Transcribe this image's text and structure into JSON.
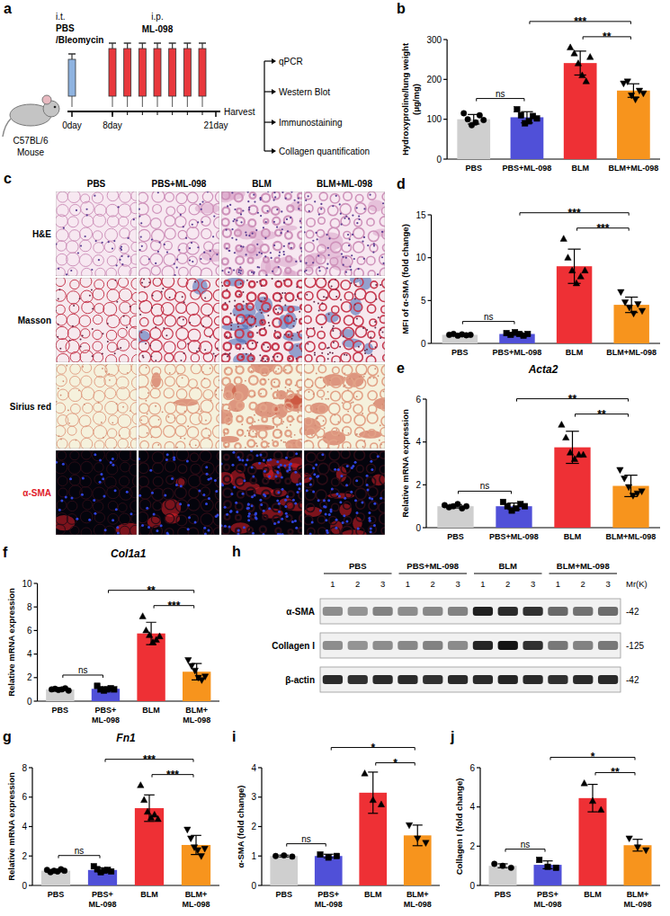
{
  "schematic": {
    "panel_label": "a",
    "strain": "C57BL/6",
    "animal": "Mouse",
    "first_route": "i.t.",
    "first_agent": [
      "PBS",
      "/Bleomycin"
    ],
    "second_route": "i.p.",
    "second_agent": "ML-098",
    "days": [
      "0day",
      "8day",
      "21day"
    ],
    "harvest": "Harvest",
    "outputs": [
      "qPCR",
      "Western Blot",
      "Immunostaining",
      "Collagen quantification"
    ]
  },
  "histology": {
    "panel_label": "c",
    "columns": [
      "PBS",
      "PBS+ML-098",
      "BLM",
      "BLM+ML-098"
    ],
    "rows": [
      "H&E",
      "Masson",
      "Sirius red",
      "α-SMA"
    ]
  },
  "blot": {
    "panel_label": "h",
    "groups": [
      "PBS",
      "PBS+ML-098",
      "BLM",
      "BLM+ML-098"
    ],
    "lanes": [
      1,
      2,
      3
    ],
    "mw_header": "Mr(K)",
    "bands": [
      {
        "name": "α-SMA",
        "mw": "-42",
        "intensity": [
          0.45,
          0.42,
          0.5,
          0.45,
          0.48,
          0.5,
          0.95,
          0.9,
          0.88,
          0.62,
          0.58,
          0.6
        ]
      },
      {
        "name": "Collagen I",
        "mw": "-125",
        "intensity": [
          0.45,
          0.42,
          0.45,
          0.48,
          0.5,
          0.46,
          0.92,
          1,
          0.88,
          0.55,
          0.5,
          0.55
        ]
      },
      {
        "name": "β-actin",
        "mw": "-42",
        "intensity": [
          0.9,
          0.88,
          0.9,
          0.9,
          0.87,
          0.9,
          0.9,
          0.92,
          0.9,
          0.88,
          0.9,
          0.9
        ]
      }
    ]
  },
  "chart_data": [
    {
      "panel_label": "b",
      "type": "bar",
      "y_label": "Hydroxyproline/lung weight (μg/mg)",
      "categories": [
        "PBS",
        "PBS+ML-098",
        "BLM",
        "BLM+ML-098"
      ],
      "colors": [
        "#cfcfcf",
        "#5050d8",
        "#ee3035",
        "#f7941d"
      ],
      "markers": [
        "circle",
        "square",
        "triangle-up",
        "triangle-down"
      ],
      "values": [
        100,
        105,
        241,
        172
      ],
      "errors": [
        12,
        14,
        30,
        17
      ],
      "points": [
        [
          115,
          100,
          85,
          92,
          110,
          98
        ],
        [
          125,
          110,
          90,
          95,
          108,
          102
        ],
        [
          280,
          265,
          240,
          210,
          195,
          256
        ],
        [
          190,
          195,
          160,
          150,
          172,
          165
        ]
      ],
      "ylim": [
        0,
        300
      ],
      "yticks": [
        0,
        100,
        200,
        300
      ],
      "comparisons": [
        {
          "groups": [
            0,
            1
          ],
          "label": "ns"
        },
        {
          "groups": [
            1,
            3
          ],
          "label": "***"
        },
        {
          "groups": [
            2,
            3
          ],
          "label": "**"
        }
      ]
    },
    {
      "panel_label": "d",
      "type": "bar",
      "y_label": "MFI of α-SMA (fold change)",
      "categories": [
        "PBS",
        "PBS+ML-098",
        "BLM",
        "BLM+ML-098"
      ],
      "colors": [
        "#cfcfcf",
        "#5050d8",
        "#ee3035",
        "#f7941d"
      ],
      "markers": [
        "circle",
        "square",
        "triangle-up",
        "triangle-down"
      ],
      "values": [
        1,
        1.1,
        9,
        4.5
      ],
      "errors": [
        0.1,
        0.15,
        2,
        0.9
      ],
      "points": [
        [
          1.0,
          1.1,
          0.9,
          1.05,
          0.95,
          1.0
        ],
        [
          1.2,
          1.0,
          1.3,
          1.1,
          0.9,
          1.1
        ],
        [
          12.2,
          10,
          8.5,
          7,
          7.8,
          8.5
        ],
        [
          6,
          4.8,
          4.2,
          3.5,
          4.6,
          3.8
        ]
      ],
      "ylim": [
        0,
        15
      ],
      "yticks": [
        0,
        5,
        10,
        15
      ],
      "comparisons": [
        {
          "groups": [
            0,
            1
          ],
          "label": "ns"
        },
        {
          "groups": [
            1,
            3
          ],
          "label": "***"
        },
        {
          "groups": [
            2,
            3
          ],
          "label": "***"
        }
      ]
    },
    {
      "panel_label": "e",
      "type": "bar",
      "title": "Acta2",
      "y_label": "Relative mRNA expression",
      "categories": [
        "PBS",
        "PBS+ML-098",
        "BLM",
        "BLM+ML-098"
      ],
      "colors": [
        "#cfcfcf",
        "#5050d8",
        "#ee3035",
        "#f7941d"
      ],
      "markers": [
        "circle",
        "square",
        "triangle-up",
        "triangle-down"
      ],
      "values": [
        1,
        1,
        3.75,
        1.95
      ],
      "errors": [
        0.08,
        0.15,
        0.75,
        0.5
      ],
      "points": [
        [
          1.05,
          0.95,
          1,
          1.1,
          0.9,
          1
        ],
        [
          1.2,
          1.0,
          0.8,
          0.9,
          1.1,
          1.0
        ],
        [
          4.8,
          4.2,
          3.5,
          3.2,
          3.4,
          3.4
        ],
        [
          2.7,
          2.3,
          1.9,
          1.5,
          1.6,
          1.7
        ]
      ],
      "ylim": [
        0,
        6
      ],
      "yticks": [
        0,
        2,
        4,
        6
      ],
      "comparisons": [
        {
          "groups": [
            0,
            1
          ],
          "label": "ns"
        },
        {
          "groups": [
            1,
            3
          ],
          "label": "**"
        },
        {
          "groups": [
            2,
            3
          ],
          "label": "**"
        }
      ]
    },
    {
      "panel_label": "f",
      "type": "bar",
      "title": "Col1a1",
      "y_label": "Relative mRNA expression",
      "categories": [
        "PBS",
        "PBS+ML-098",
        "BLM",
        "BLM+ML-098"
      ],
      "colors": [
        "#cfcfcf",
        "#5050d8",
        "#ee3035",
        "#f7941d"
      ],
      "markers": [
        "circle",
        "square",
        "triangle-up",
        "triangle-down"
      ],
      "values": [
        1,
        1.05,
        5.75,
        2.5
      ],
      "errors": [
        0.06,
        0.15,
        0.95,
        0.7
      ],
      "points": [
        [
          1,
          1.05,
          0.95,
          1,
          1.1,
          0.9
        ],
        [
          1.3,
          1.0,
          0.9,
          1,
          1.1,
          1.0
        ],
        [
          7.2,
          6,
          5.6,
          5,
          5.2,
          5.5
        ],
        [
          3.5,
          3,
          2.6,
          2,
          1.8,
          2.1
        ]
      ],
      "ylim": [
        0,
        10
      ],
      "yticks": [
        0,
        2,
        4,
        6,
        8,
        10
      ],
      "comparisons": [
        {
          "groups": [
            0,
            1
          ],
          "label": "ns"
        },
        {
          "groups": [
            1,
            3
          ],
          "label": "**"
        },
        {
          "groups": [
            2,
            3
          ],
          "label": "***"
        }
      ]
    },
    {
      "panel_label": "g",
      "type": "bar",
      "title": "Fn1",
      "y_label": "Relative mRNA expression",
      "categories": [
        "PBS",
        "PBS+ML-098",
        "BLM",
        "BLM+ML-098"
      ],
      "colors": [
        "#cfcfcf",
        "#5050d8",
        "#ee3035",
        "#f7941d"
      ],
      "markers": [
        "circle",
        "square",
        "triangle-up",
        "triangle-down"
      ],
      "values": [
        1,
        1.05,
        5.25,
        2.75
      ],
      "errors": [
        0.08,
        0.15,
        0.9,
        0.65
      ],
      "points": [
        [
          1.05,
          0.9,
          1,
          0.95,
          1.1,
          1
        ],
        [
          1.3,
          1.1,
          0.9,
          1,
          1.05,
          0.95
        ],
        [
          6.8,
          5.8,
          5,
          4.6,
          4.8,
          4.5
        ],
        [
          3.8,
          3.2,
          2.6,
          2.4,
          2,
          2.5
        ]
      ],
      "ylim": [
        0,
        8
      ],
      "yticks": [
        0,
        2,
        4,
        6,
        8
      ],
      "comparisons": [
        {
          "groups": [
            0,
            1
          ],
          "label": "ns"
        },
        {
          "groups": [
            1,
            3
          ],
          "label": "***"
        },
        {
          "groups": [
            2,
            3
          ],
          "label": "***"
        }
      ]
    },
    {
      "panel_label": "i",
      "type": "bar",
      "y_label": "α-SMA (fold change)",
      "categories": [
        "PBS",
        "PBS+ML-098",
        "BLM",
        "BLM+ML-098"
      ],
      "colors": [
        "#cfcfcf",
        "#5050d8",
        "#ee3035",
        "#f7941d"
      ],
      "markers": [
        "circle",
        "square",
        "triangle-up",
        "triangle-down"
      ],
      "values": [
        1,
        1,
        3.15,
        1.7
      ],
      "errors": [
        0.03,
        0.06,
        0.7,
        0.35
      ],
      "points": [
        [
          1,
          1.02,
          0.98
        ],
        [
          1.05,
          0.95,
          1.0
        ],
        [
          3.8,
          2.9,
          2.75
        ],
        [
          2.05,
          1.6,
          1.45
        ]
      ],
      "ylim": [
        0,
        4
      ],
      "yticks": [
        0,
        1,
        2,
        3,
        4
      ],
      "comparisons": [
        {
          "groups": [
            0,
            1
          ],
          "label": "ns"
        },
        {
          "groups": [
            1,
            3
          ],
          "label": "*"
        },
        {
          "groups": [
            2,
            3
          ],
          "label": "*"
        }
      ]
    },
    {
      "panel_label": "j",
      "type": "bar",
      "y_label": "Collagen I (fold change)",
      "categories": [
        "PBS",
        "PBS+ML-098",
        "BLM",
        "BLM+ML-098"
      ],
      "colors": [
        "#cfcfcf",
        "#5050d8",
        "#ee3035",
        "#f7941d"
      ],
      "markers": [
        "circle",
        "square",
        "triangle-up",
        "triangle-down"
      ],
      "values": [
        1,
        1.05,
        4.45,
        2.05
      ],
      "errors": [
        0.1,
        0.2,
        0.7,
        0.3
      ],
      "points": [
        [
          1.1,
          1.0,
          0.9
        ],
        [
          1.3,
          0.95,
          0.9
        ],
        [
          5.2,
          4.3,
          3.85
        ],
        [
          2.4,
          1.95,
          1.8
        ]
      ],
      "ylim": [
        0,
        6
      ],
      "yticks": [
        0,
        2,
        4,
        6
      ],
      "comparisons": [
        {
          "groups": [
            0,
            1
          ],
          "label": "ns"
        },
        {
          "groups": [
            1,
            3
          ],
          "label": "*"
        },
        {
          "groups": [
            2,
            3
          ],
          "label": "**"
        }
      ]
    }
  ]
}
